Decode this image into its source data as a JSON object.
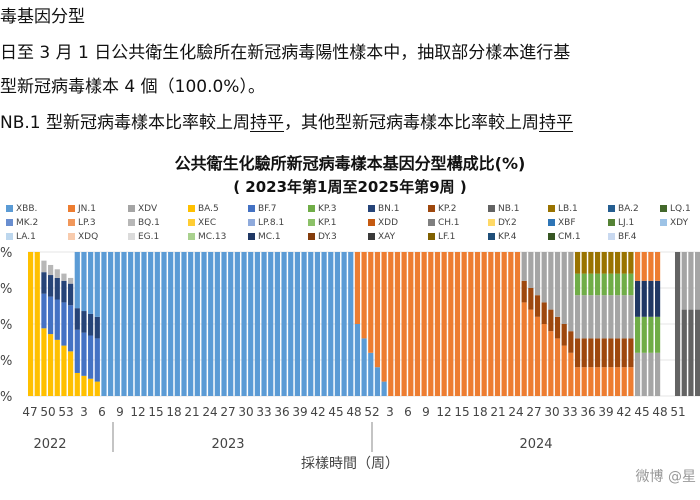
{
  "text": {
    "line1": "毒基因分型",
    "line2": "日至 3 月 1 日公共衛生化驗所在新冠病毒陽性樣本中，抽取部分樣本進行基",
    "line3": "型新冠病毒樣本 4 個（100.0%）。",
    "line4_pre": "NB.1 型新冠病毒樣本比率較上周",
    "line4_u1": "持平",
    "line4_mid": "，其他型新冠病毒樣本比率較上周",
    "line4_u2": "持平",
    "watermark": "微博 @星"
  },
  "chart_data": {
    "type": "bar",
    "stacked": true,
    "title": "公共衛生化驗所新冠病毒樣本基因分型構成比(%)",
    "subtitle": "( 2023年第1周至2025年第9周 )",
    "xlabel": "採樣時間（周）",
    "ylabel": "",
    "ylim": [
      0,
      100
    ],
    "ytick_labels": [
      "%",
      "%",
      "%",
      "%",
      "%"
    ],
    "xtick_labels": [
      "47",
      "50",
      "53",
      "3",
      "6",
      "9",
      "12",
      "15",
      "18",
      "21",
      "24",
      "27",
      "30",
      "33",
      "36",
      "39",
      "42",
      "45",
      "48",
      "52",
      "3",
      "6",
      "9",
      "12",
      "15",
      "18",
      "21",
      "24",
      "27",
      "30",
      "33",
      "36",
      "39",
      "42",
      "45",
      "48",
      "51"
    ],
    "year_labels": [
      "2022",
      "2023",
      "2024"
    ],
    "legend": [
      {
        "name": "XBB.",
        "color": "#5b9bd5"
      },
      {
        "name": "JN.1",
        "color": "#ed7d31"
      },
      {
        "name": "XDV",
        "color": "#a5a5a5"
      },
      {
        "name": "BA.5",
        "color": "#ffc000"
      },
      {
        "name": "BF.7",
        "color": "#4472c4"
      },
      {
        "name": "KP.3",
        "color": "#70ad47"
      },
      {
        "name": "BN.1",
        "color": "#264478"
      },
      {
        "name": "KP.2",
        "color": "#9e480e"
      },
      {
        "name": "NB.1",
        "color": "#636363"
      },
      {
        "name": "LB.1",
        "color": "#997300"
      },
      {
        "name": "BA.2",
        "color": "#255e91"
      },
      {
        "name": "LQ.1",
        "color": "#43682b"
      },
      {
        "name": "MK.2",
        "color": "#698ed0"
      },
      {
        "name": "LP.3",
        "color": "#f1975a"
      },
      {
        "name": "BQ.1",
        "color": "#b7b7b7"
      },
      {
        "name": "XEC",
        "color": "#ffcd33"
      },
      {
        "name": "LP.8.1",
        "color": "#8faadc"
      },
      {
        "name": "KP.1",
        "color": "#8cc168"
      },
      {
        "name": "XDD",
        "color": "#c55a11"
      },
      {
        "name": "CH.1",
        "color": "#7f7f7f"
      },
      {
        "name": "DY.2",
        "color": "#ffd966"
      },
      {
        "name": "XBF",
        "color": "#2e75b6"
      },
      {
        "name": "LJ.1",
        "color": "#548235"
      },
      {
        "name": "XDY",
        "color": "#9dc3e6"
      },
      {
        "name": "LA.1",
        "color": "#bdd7ee"
      },
      {
        "name": "XDQ",
        "color": "#f8cbad"
      },
      {
        "name": "EG.1",
        "color": "#dbdbdb"
      },
      {
        "name": "MC.13",
        "color": "#a9d18e"
      },
      {
        "name": "MC.1",
        "color": "#203864"
      },
      {
        "name": "DY.3",
        "color": "#843c0c"
      },
      {
        "name": "XAY",
        "color": "#3a3a3a"
      },
      {
        "name": "LF.1",
        "color": "#7f6000"
      },
      {
        "name": "KP.4",
        "color": "#1f4e79"
      },
      {
        "name": "CM.1",
        "color": "#375623"
      },
      {
        "name": "BF.4",
        "color": "#c9d9f0"
      }
    ],
    "series_by_period": {
      "2022_wk47_53": "BA.5, BF.7, BN.1, BQ.1, XBB. mix",
      "2023": "XBB. dominant",
      "2024_early": "JN.1 dominant",
      "2024_late": "KP.2, KP.3, XDV, LB.1, MC.1 mix"
    }
  }
}
